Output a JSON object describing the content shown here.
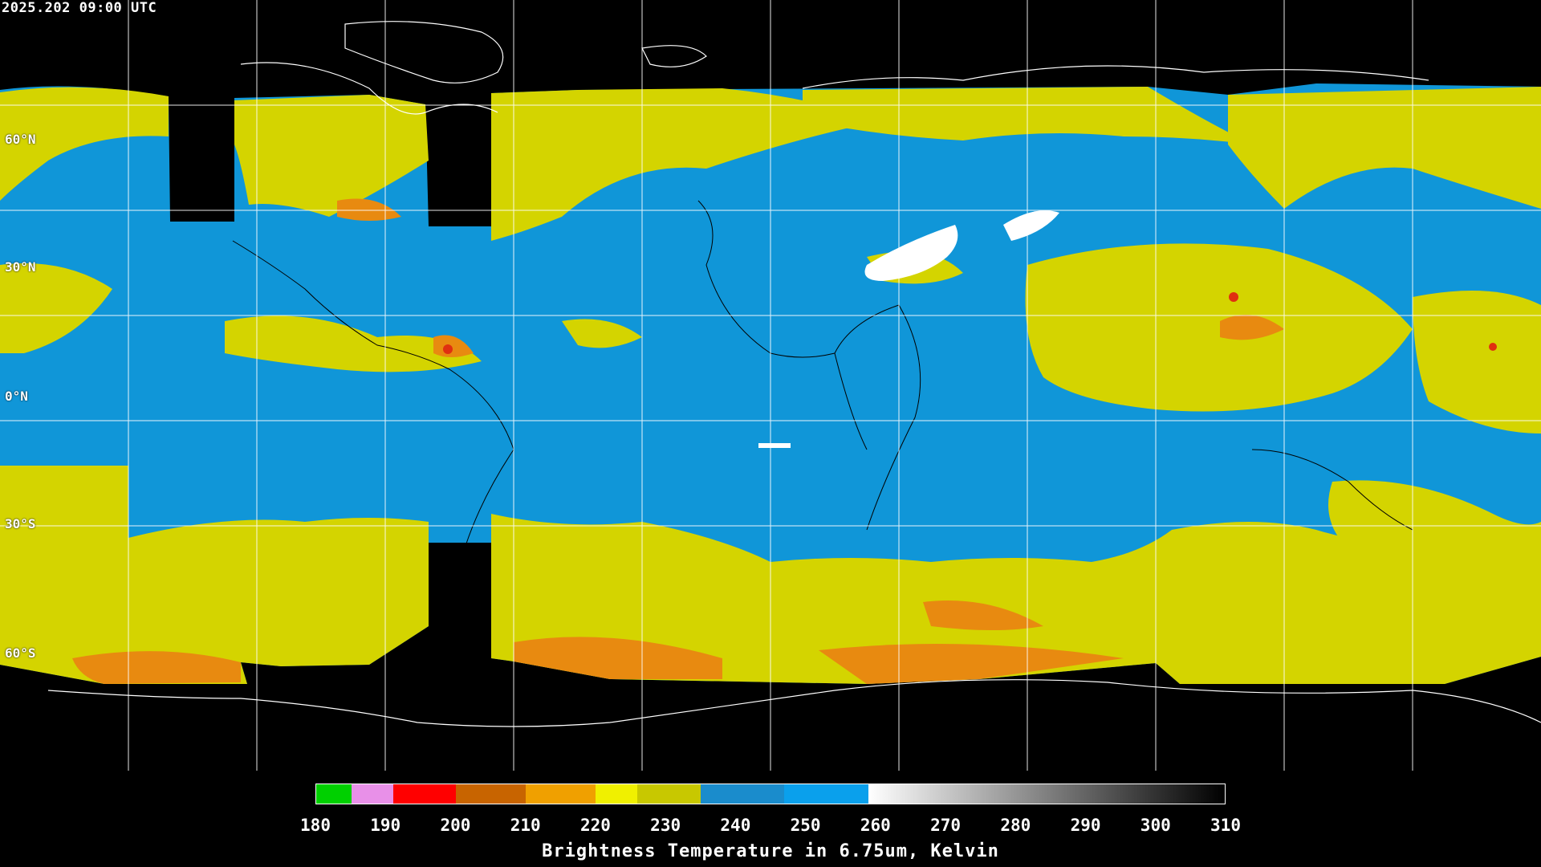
{
  "timestamp": "2025.202 09:00 UTC",
  "lat_labels": [
    "60°N",
    "30°N",
    "0°N",
    "30°S",
    "60°S"
  ],
  "colorbar": {
    "title": "Brightness Temperature in 6.75um, Kelvin",
    "min": 180,
    "max": 310,
    "ticks": [
      "180",
      "190",
      "200",
      "210",
      "220",
      "230",
      "240",
      "250",
      "260",
      "270",
      "280",
      "290",
      "300",
      "310"
    ],
    "segments": [
      {
        "from": 180,
        "to": 185,
        "color": "#00d000"
      },
      {
        "from": 185,
        "to": 191,
        "color": "#e890e8"
      },
      {
        "from": 191,
        "to": 200,
        "color": "#ff0000"
      },
      {
        "from": 200,
        "to": 210,
        "color": "#c86400"
      },
      {
        "from": 210,
        "to": 220,
        "color": "#f0a000"
      },
      {
        "from": 220,
        "to": 226,
        "color": "#f0f000"
      },
      {
        "from": 226,
        "to": 235,
        "color": "#c8c800"
      },
      {
        "from": 235,
        "to": 247,
        "color": "#1a8ccc"
      },
      {
        "from": 247,
        "to": 259,
        "color": "#0aa0ec"
      },
      {
        "from": 259,
        "to": 310,
        "gradient": [
          "#ffffff",
          "#000000"
        ]
      }
    ]
  },
  "colors": {
    "background": "#000000",
    "moisture_dry": "#1096d8",
    "moisture_mid": "#d4d400",
    "moisture_mid2": "#e6e615",
    "moisture_cold": "#e88a10",
    "moisture_very_cold": "#e03010",
    "very_dry": "#ffffff",
    "coastline": "#ffffff",
    "grid": "#ffffff"
  }
}
